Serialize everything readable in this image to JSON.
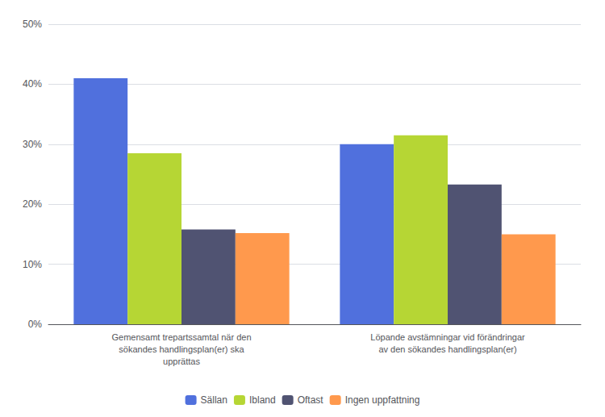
{
  "chart_data": {
    "type": "bar",
    "categories": [
      "Gemensamt trepartssamtal när den\nsökandes handlingsplan(er) ska\nupprättas",
      "Löpande avstämningar vid förändringar\nav den sökandes handlingsplan(er)"
    ],
    "series": [
      {
        "name": "Sällan",
        "values": [
          0.41,
          0.3
        ]
      },
      {
        "name": "Ibland",
        "values": [
          0.285,
          0.315
        ]
      },
      {
        "name": "Oftast",
        "values": [
          0.158,
          0.233
        ]
      },
      {
        "name": "Ingen uppfattning",
        "values": [
          0.152,
          0.15
        ]
      }
    ],
    "ylim": [
      0,
      0.5
    ],
    "yticks": [
      {
        "value": 0,
        "label": "0%"
      },
      {
        "value": 0.1,
        "label": "10%"
      },
      {
        "value": 0.2,
        "label": "20%"
      },
      {
        "value": 0.3,
        "label": "30%"
      },
      {
        "value": 0.4,
        "label": "40%"
      },
      {
        "value": 0.5,
        "label": "50%"
      }
    ],
    "grid": true,
    "legend": "bottom"
  }
}
